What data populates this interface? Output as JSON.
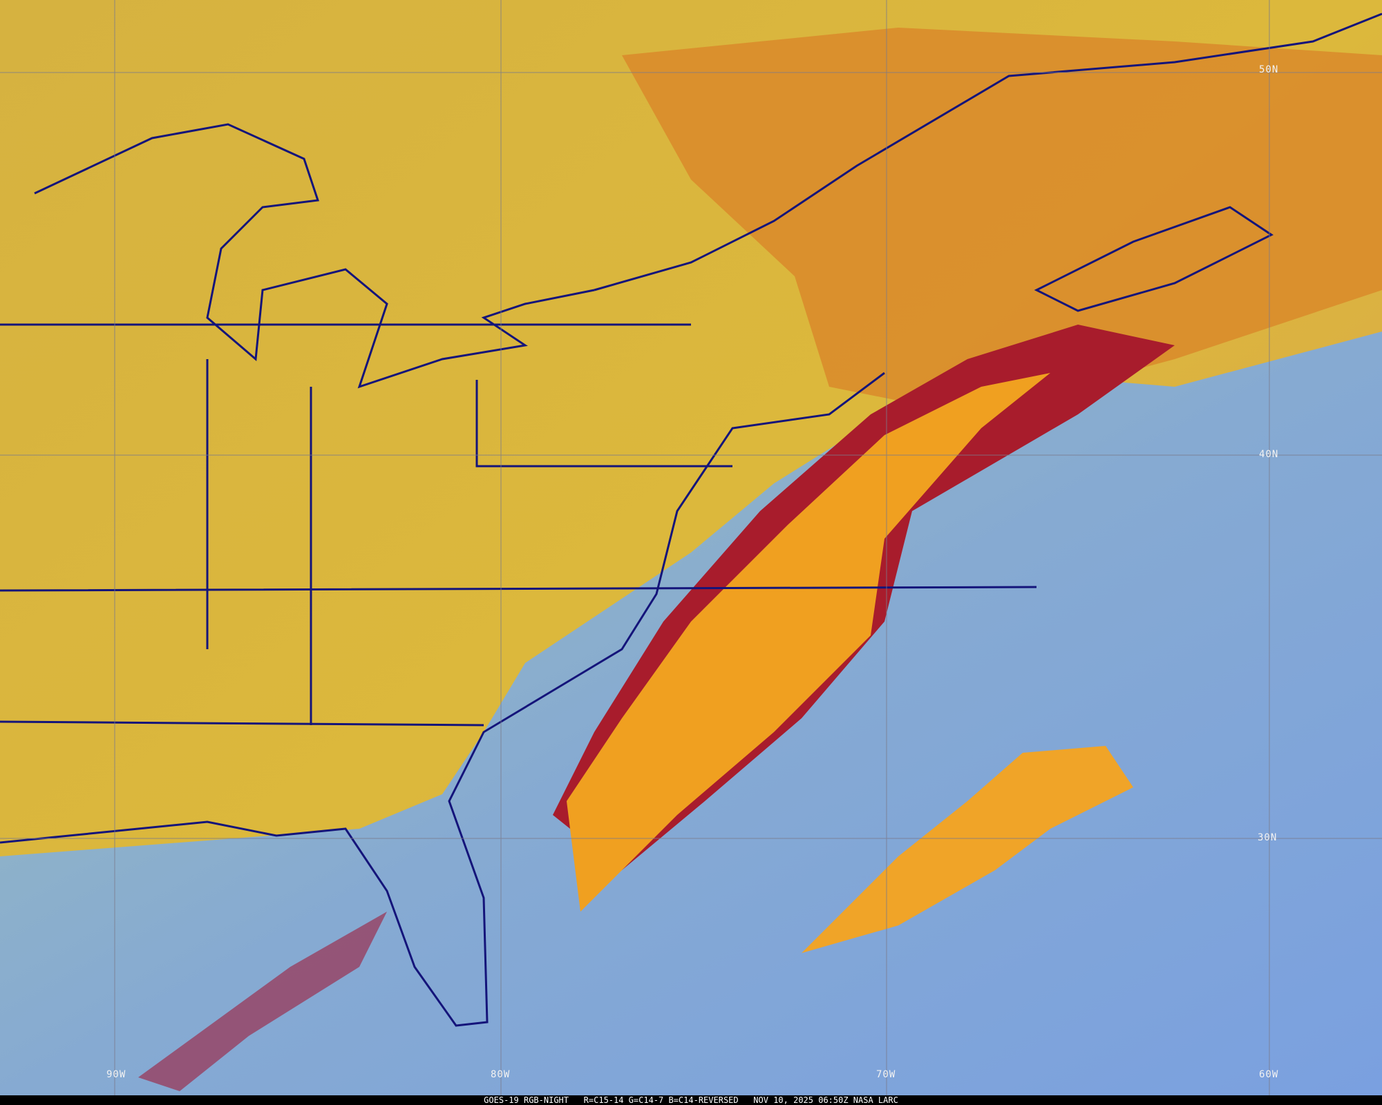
{
  "product": {
    "caption": "GOES-19 RGB-NIGHT   R=C15-14 G=C14-7 B=C14-REVERSED   NOV 10, 2025 06:50Z NASA LARC"
  },
  "grid": {
    "latitude_labels": [
      "50N",
      "40N",
      "30N"
    ],
    "longitude_labels": [
      "90W",
      "80W",
      "70W",
      "60W"
    ]
  },
  "colors": {
    "land_cloud": "#d9a43c",
    "low_cloud_yellow": "#d8c840",
    "ocean_clear": "#7fa6d6",
    "high_cloud_orange": "#f0a020",
    "deep_cloud_red": "#a01828",
    "boundaries": "#14147a",
    "grid": "#7a7a8a"
  }
}
